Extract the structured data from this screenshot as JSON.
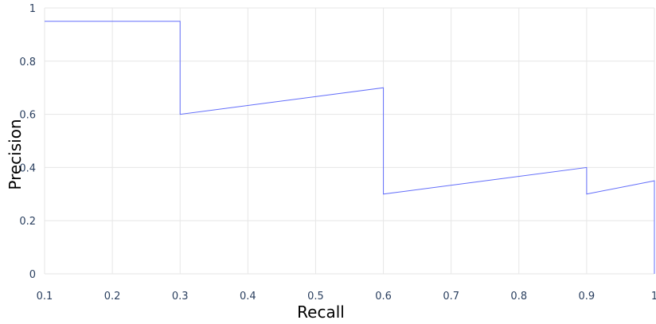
{
  "chart_data": {
    "type": "line",
    "title": "",
    "xlabel": "Recall",
    "ylabel": "Precision",
    "xlim": [
      0.1,
      1.0
    ],
    "ylim": [
      0,
      1
    ],
    "x_ticks": [
      0.1,
      0.2,
      0.3,
      0.4,
      0.5,
      0.6,
      0.7,
      0.8,
      0.9,
      1.0
    ],
    "x_tick_labels": [
      "0.1",
      "0.2",
      "0.3",
      "0.4",
      "0.5",
      "0.6",
      "0.7",
      "0.8",
      "0.9",
      "1"
    ],
    "y_ticks": [
      0,
      0.2,
      0.4,
      0.6,
      0.8,
      1.0
    ],
    "y_tick_labels": [
      "0",
      "0.2",
      "0.4",
      "0.6",
      "0.8",
      "1"
    ],
    "grid": true,
    "legend": false,
    "series": [
      {
        "color": "#636efa",
        "x": [
          0.1,
          0.3,
          0.3,
          0.6,
          0.6,
          0.9,
          0.9,
          1.0,
          1.0
        ],
        "y": [
          0.95,
          0.95,
          0.6,
          0.7,
          0.3,
          0.4,
          0.3,
          0.35,
          0.0
        ]
      }
    ]
  }
}
